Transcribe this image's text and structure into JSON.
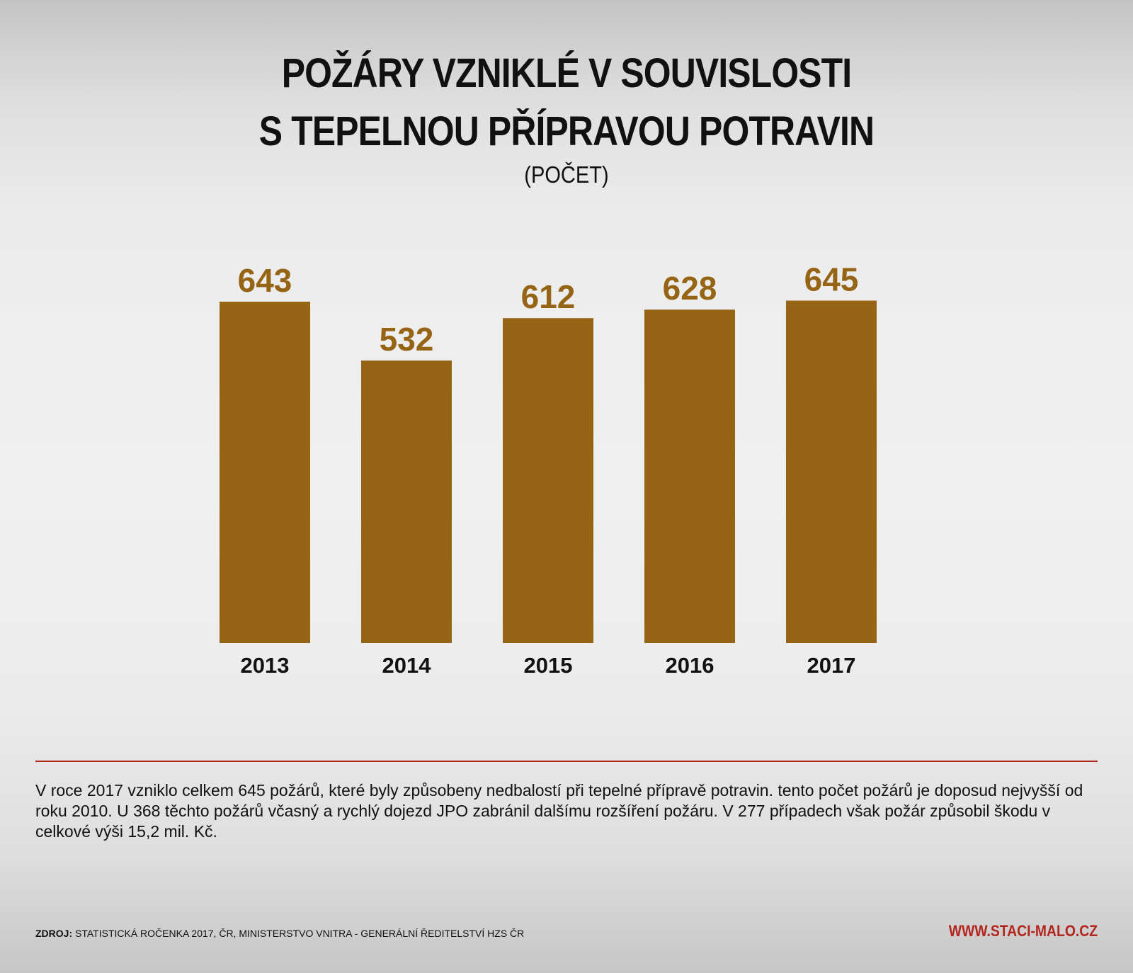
{
  "header": {
    "title_line_1": "POŽÁRY VZNIKLÉ V SOUVISLOSTI",
    "title_line_2": "S TEPELNOU PŘÍPRAVOU POTRAVIN",
    "subtitle": "(POČET)"
  },
  "colors": {
    "bar": "#966415",
    "value_label": "#966415",
    "accent": "#b3261e"
  },
  "chart_data": {
    "type": "bar",
    "title": "POŽÁRY VZNIKLÉ V SOUVISLOSTI S TEPELNOU PŘÍPRAVOU POTRAVIN",
    "subtitle": "(POČET)",
    "categories": [
      "2013",
      "2014",
      "2015",
      "2016",
      "2017"
    ],
    "values": [
      643,
      532,
      612,
      628,
      645
    ],
    "value_labels": [
      "643",
      "532",
      "612",
      "628",
      "645"
    ],
    "xlabel": "",
    "ylabel": "",
    "grid": false,
    "legend": "none"
  },
  "footer": {
    "description": "V roce 2017 vzniklo celkem 645 požárů, které byly způsobeny nedbalostí při tepelné přípravě potravin. tento počet požárů je doposud nejvyšší od roku 2010. U 368 těchto požárů včasný a rychlý dojezd JPO zabránil dalšímu rozšíření požáru. V 277 případech však požár způsobil škodu v celkové výši 15,2 mil. Kč.",
    "source_label": "ZDROJ:",
    "source_text": "STATISTICKÁ ROČENKA 2017, ČR, MINISTERSTVO VNITRA - GENERÁLNÍ ŘEDITELSTVÍ HZS ČR",
    "website": "WWW.STACI-MALO.CZ"
  }
}
